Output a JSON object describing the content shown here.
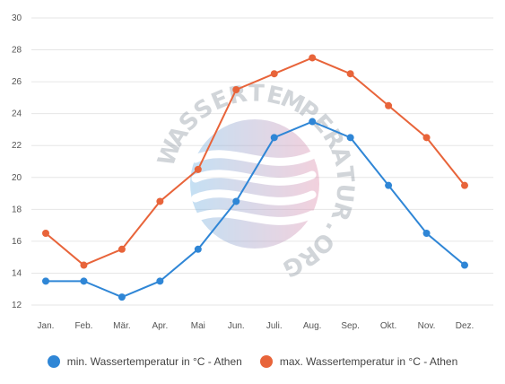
{
  "chart_data": {
    "type": "line",
    "categories": [
      "Jan.",
      "Feb.",
      "Mär.",
      "Apr.",
      "Mai",
      "Jun.",
      "Juli.",
      "Aug.",
      "Sep.",
      "Okt.",
      "Nov.",
      "Dez."
    ],
    "series": [
      {
        "name": "min. Wassertemperatur in °C - Athen",
        "color": "#2f86d6",
        "values": [
          13.5,
          13.5,
          12.5,
          13.5,
          15.5,
          18.5,
          22.5,
          23.5,
          22.5,
          19.5,
          16.5,
          14.5
        ]
      },
      {
        "name": "max. Wassertemperatur in °C - Athen",
        "color": "#e8643a",
        "values": [
          16.5,
          14.5,
          15.5,
          18.5,
          20.5,
          25.5,
          26.5,
          27.5,
          26.5,
          24.5,
          22.5,
          19.5
        ]
      }
    ],
    "yticks": [
      12,
      14,
      16,
      18,
      20,
      22,
      24,
      26,
      28,
      30
    ],
    "ylim": [
      12,
      30
    ],
    "grid": true,
    "legend_position": "bottom"
  },
  "watermark": {
    "text": "WASSERTEMPERATUR.ORG"
  }
}
